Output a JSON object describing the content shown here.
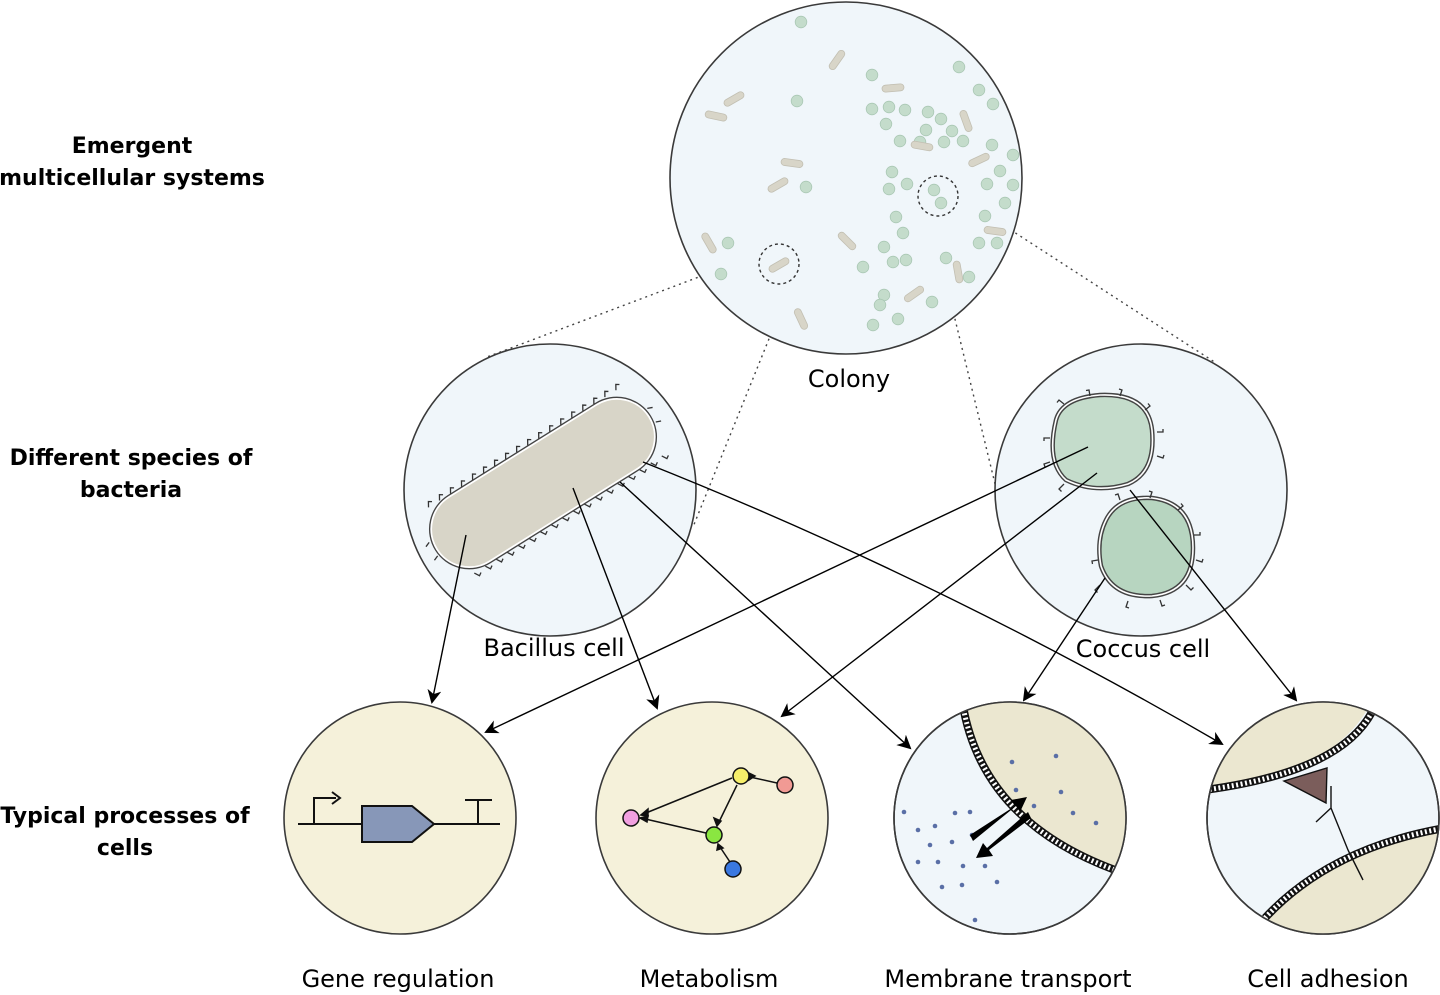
{
  "row_labels": {
    "emergent": [
      "Emergent",
      "multicellular systems"
    ],
    "species": [
      "Different species of",
      "bacteria"
    ],
    "processes": [
      "Typical processes of",
      "cells"
    ]
  },
  "nodes": {
    "colony": "Colony",
    "bacillus": "Bacillus cell",
    "coccus": "Coccus cell",
    "gene_regulation": "Gene regulation",
    "metabolism": "Metabolism",
    "membrane_transport": "Membrane transport",
    "cell_adhesion": "Cell adhesion"
  },
  "colors": {
    "circle_fill_blue": "#f0f6fa",
    "circle_fill_cream": "#f5f1da",
    "bacillus_fill": "#d8d5c8",
    "coccus_fill": "#c4dccb",
    "coccus_fill_dark": "#b7d5c0",
    "promoter_gene": "#8797b8",
    "membrane_fill": "#ebe7d0",
    "adhesion_triangle": "#7b5d5b",
    "node_yellow": "#f5ee6a",
    "node_red": "#f19a94",
    "node_pink": "#f1a0e0",
    "node_green": "#8ae641",
    "node_blue": "#3a78e0",
    "molecule": "#5a6fa6"
  }
}
